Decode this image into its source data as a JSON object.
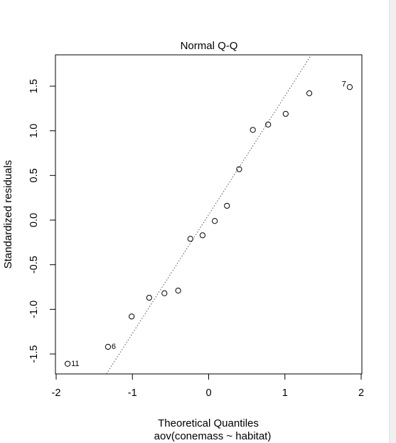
{
  "chart_data": {
    "type": "scatter",
    "title": "Normal Q-Q",
    "xlabel": "Theoretical Quantiles",
    "sublabel": "aov(conemass ~ habitat)",
    "ylabel": "Standardized residuals",
    "xlim": [
      -2.0,
      2.0
    ],
    "ylim": [
      -1.75,
      1.85
    ],
    "x_ticks": [
      -2,
      -1,
      0,
      1,
      2
    ],
    "x_tick_labels": [
      "-2",
      "-1",
      "0",
      "1",
      "2"
    ],
    "y_ticks": [
      -1.5,
      -1.0,
      -0.5,
      0.0,
      0.5,
      1.0,
      1.5
    ],
    "y_tick_labels": [
      "-1.5",
      "-1.0",
      "-0.5",
      "0.0",
      "0.5",
      "1.0",
      "1.5"
    ],
    "grid": false,
    "reference_line": {
      "slope": 1.33,
      "intercept": 0.06,
      "style": "dotted",
      "color": "#555555"
    },
    "point_style": {
      "shape": "open-circle",
      "color": "#000000"
    },
    "points": [
      {
        "x": -1.85,
        "y": -1.61,
        "label": "11"
      },
      {
        "x": -1.32,
        "y": -1.42,
        "label": "6"
      },
      {
        "x": -1.01,
        "y": -1.08
      },
      {
        "x": -0.78,
        "y": -0.87
      },
      {
        "x": -0.58,
        "y": -0.82
      },
      {
        "x": -0.4,
        "y": -0.79
      },
      {
        "x": -0.24,
        "y": -0.21
      },
      {
        "x": -0.08,
        "y": -0.17
      },
      {
        "x": 0.08,
        "y": -0.01
      },
      {
        "x": 0.24,
        "y": 0.16
      },
      {
        "x": 0.4,
        "y": 0.57
      },
      {
        "x": 0.58,
        "y": 1.01
      },
      {
        "x": 0.78,
        "y": 1.07
      },
      {
        "x": 1.01,
        "y": 1.19
      },
      {
        "x": 1.32,
        "y": 1.42
      },
      {
        "x": 1.85,
        "y": 1.49,
        "label": "7"
      }
    ]
  }
}
